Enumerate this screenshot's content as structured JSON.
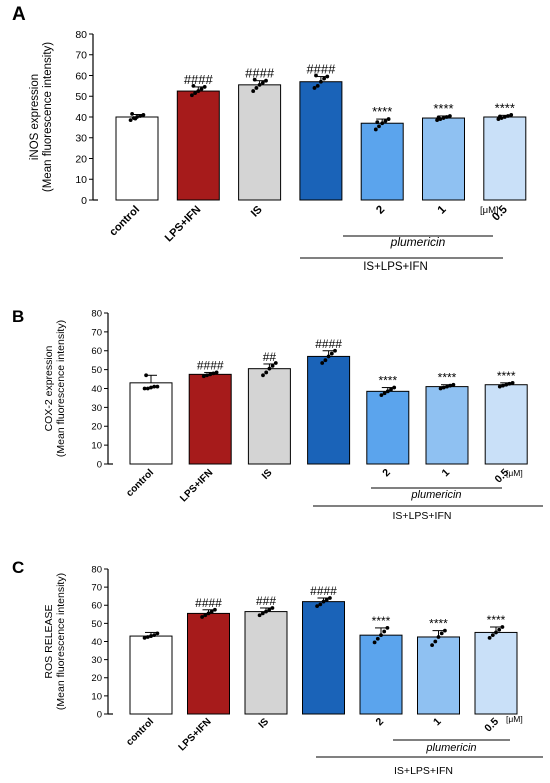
{
  "chart_data": [
    {
      "type": "bar",
      "panel_label": "A",
      "ylabel_line1": "iNOS expression",
      "ylabel_line2": "(Mean fluorescence intensity)",
      "ylim": [
        0,
        80
      ],
      "yticks": [
        0,
        10,
        20,
        30,
        40,
        50,
        60,
        70,
        80
      ],
      "categories": [
        "control",
        "LPS+IFN",
        "IS",
        "",
        "2",
        "1",
        "0.5"
      ],
      "values": [
        40,
        52.5,
        55.5,
        57,
        37,
        39.5,
        40
      ],
      "errors": [
        1.2,
        2.0,
        2.0,
        2.5,
        2.0,
        1.0,
        0.8
      ],
      "points": [
        [
          38.5,
          39.5,
          40,
          40.5,
          41,
          41.5,
          39.2
        ],
        [
          50.5,
          51.5,
          52.5,
          53.5,
          54.5,
          55
        ],
        [
          52.5,
          54,
          55.5,
          56.5,
          57.5,
          58
        ],
        [
          54,
          55,
          57,
          58.5,
          59.5,
          60
        ],
        [
          34,
          35.5,
          37,
          38,
          39,
          37.5
        ],
        [
          38.5,
          39,
          39.5,
          40,
          40.5,
          39.8
        ],
        [
          39,
          39.5,
          40,
          40.5,
          41,
          40.2
        ]
      ],
      "annotations": [
        "",
        "####",
        "####",
        "####",
        "****",
        "****",
        "****"
      ],
      "unit": "[μM]",
      "compound": "plumericin",
      "treatment": "IS+LPS+IFN"
    },
    {
      "type": "bar",
      "panel_label": "B",
      "ylabel_line1": "COX-2 expression",
      "ylabel_line2": "(Mean fluorescence intensity)",
      "ylim": [
        0,
        80
      ],
      "yticks": [
        0,
        10,
        20,
        30,
        40,
        50,
        60,
        70,
        80
      ],
      "categories": [
        "control",
        "LPS+IFN",
        "IS",
        "",
        "2",
        "1",
        "0.5"
      ],
      "values": [
        43,
        47.5,
        50.5,
        57,
        38.5,
        41,
        42
      ],
      "errors": [
        4.0,
        1.0,
        2.5,
        3.0,
        2.0,
        1.0,
        1.0
      ],
      "points": [
        [
          40,
          40,
          40.5,
          41,
          41,
          47
        ],
        [
          46.5,
          47,
          47.5,
          48,
          48.5
        ],
        [
          47,
          48.5,
          50.5,
          52,
          53.5
        ],
        [
          53.5,
          55,
          57,
          58.5,
          60
        ],
        [
          36.5,
          37.5,
          38.5,
          39.5,
          40.5
        ],
        [
          40,
          40.5,
          41,
          41.5,
          42
        ],
        [
          41,
          41.5,
          42,
          42.5,
          43
        ]
      ],
      "annotations": [
        "",
        "####",
        "##",
        "####",
        "****",
        "****",
        "****"
      ],
      "unit": "[μM]",
      "compound": "plumericin",
      "treatment": "IS+LPS+IFN"
    },
    {
      "type": "bar",
      "panel_label": "C",
      "ylabel_line1": "ROS RELEASE",
      "ylabel_line2": "(Mean fluorescence intensity)",
      "ylim": [
        0,
        80
      ],
      "yticks": [
        0,
        10,
        20,
        30,
        40,
        50,
        60,
        70,
        80
      ],
      "categories": [
        "control",
        "LPS+IFN",
        "IS",
        "",
        "2",
        "1",
        "0.5"
      ],
      "values": [
        43,
        55.5,
        56.5,
        62,
        43.5,
        42.5,
        45
      ],
      "errors": [
        2.0,
        2.0,
        2.0,
        2.0,
        4.0,
        3.5,
        3.0
      ],
      "points": [
        [
          42,
          42.5,
          43,
          43.5,
          44.5
        ],
        [
          53.5,
          54.5,
          55.5,
          56.5,
          57.5
        ],
        [
          54.5,
          55.5,
          56.5,
          57.5,
          58.5
        ],
        [
          59.5,
          60.5,
          62,
          63,
          64
        ],
        [
          39.5,
          41.5,
          43.5,
          45.5,
          47.5
        ],
        [
          38,
          40,
          42.5,
          44.5,
          46
        ],
        [
          42,
          43.5,
          45,
          46.5,
          48
        ]
      ],
      "annotations": [
        "",
        "####",
        "###",
        "####",
        "****",
        "****",
        "****"
      ],
      "unit": "[μM]",
      "compound": "plumericin",
      "treatment": "IS+LPS+IFN"
    }
  ],
  "bar_colors": [
    "#ffffff",
    "#a61b1b",
    "#d4d4d4",
    "#1a63b8",
    "#5ba4ed",
    "#8fc1f2",
    "#c9e0f8"
  ]
}
